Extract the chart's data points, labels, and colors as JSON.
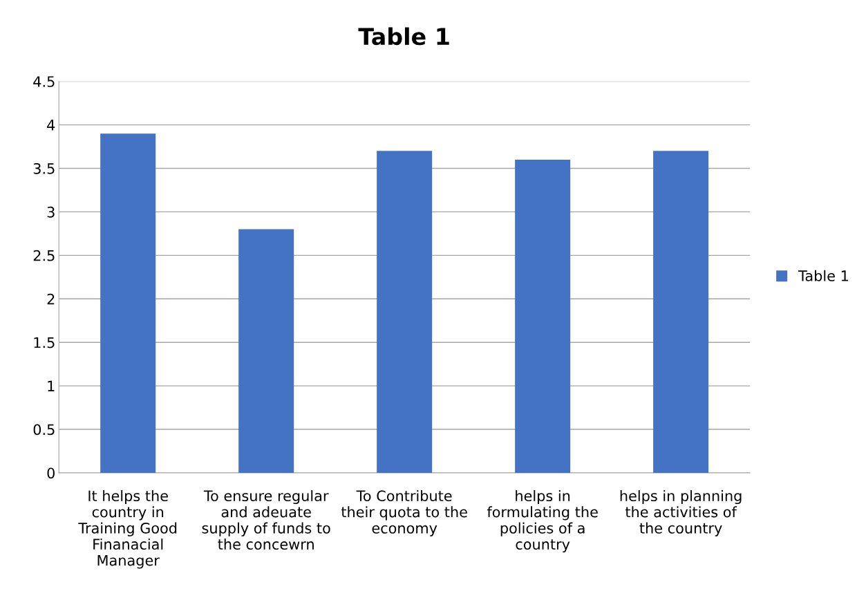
{
  "chart_data": {
    "type": "bar",
    "title": "Table 1",
    "categories": [
      "It helps the\ncountry in\nTraining Good\nFinanacial\nManager",
      "To ensure regular\nand adeuate\nsupply of funds to\nthe concewrn",
      "To Contribute\ntheir quota to the\neconomy",
      "helps in\nformulating the\npolicies of a\ncountry",
      "helps in planning\nthe activities of\nthe country"
    ],
    "series": [
      {
        "name": "Table 1",
        "color": "#4472c4",
        "values": [
          3.9,
          2.8,
          3.7,
          3.6,
          3.7
        ]
      }
    ],
    "ylim": [
      0,
      4.5
    ],
    "yticks": [
      0,
      0.5,
      1,
      1.5,
      2,
      2.5,
      3,
      3.5,
      4,
      4.5
    ],
    "grid": "y",
    "legend": "right"
  }
}
